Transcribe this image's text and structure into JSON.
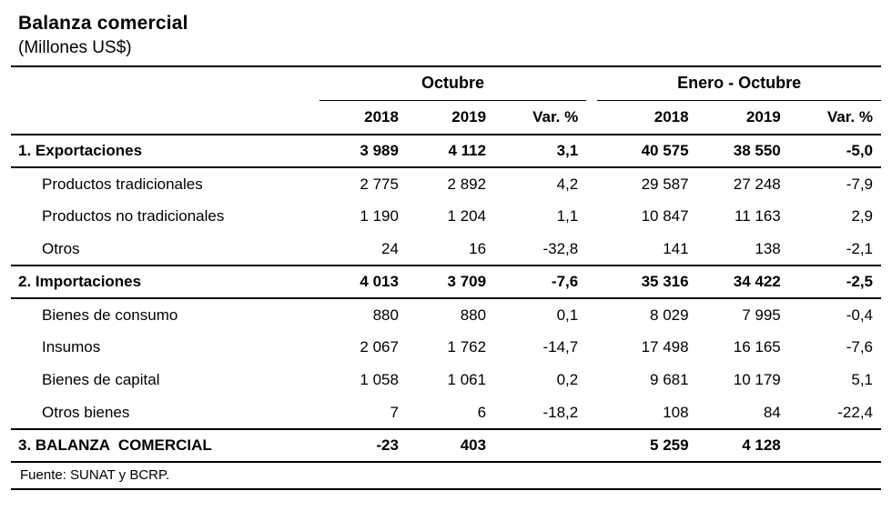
{
  "header": {
    "title": "Balanza comercial",
    "subtitle": "(Millones US$)"
  },
  "table": {
    "column_groups": [
      {
        "label": "Octubre"
      },
      {
        "label": "Enero - Octubre"
      }
    ],
    "column_headers": [
      "2018",
      "2019",
      "Var. %",
      "2018",
      "2019",
      "Var. %"
    ],
    "rows": [
      {
        "label": "1. Exportaciones",
        "values": [
          "3 989",
          "4 112",
          "3,1",
          "40 575",
          "38 550",
          "-5,0"
        ]
      },
      {
        "label": "Productos tradicionales",
        "values": [
          "2 775",
          "2 892",
          "4,2",
          "29 587",
          "27 248",
          "-7,9"
        ]
      },
      {
        "label": "Productos no tradicionales",
        "values": [
          "1 190",
          "1 204",
          "1,1",
          "10 847",
          "11 163",
          "2,9"
        ]
      },
      {
        "label": "Otros",
        "values": [
          "24",
          "16",
          "-32,8",
          "141",
          "138",
          "-2,1"
        ]
      },
      {
        "label": "2. Importaciones",
        "values": [
          "4 013",
          "3 709",
          "-7,6",
          "35 316",
          "34 422",
          "-2,5"
        ]
      },
      {
        "label": "Bienes de consumo",
        "values": [
          "880",
          "880",
          "0,1",
          "8 029",
          "7 995",
          "-0,4"
        ]
      },
      {
        "label": "Insumos",
        "values": [
          "2 067",
          "1 762",
          "-14,7",
          "17 498",
          "16 165",
          "-7,6"
        ]
      },
      {
        "label": "Bienes de capital",
        "values": [
          "1 058",
          "1 061",
          "0,2",
          "9 681",
          "10 179",
          "5,1"
        ]
      },
      {
        "label": "Otros bienes",
        "values": [
          "7",
          "6",
          "-18,2",
          "108",
          "84",
          "-22,4"
        ]
      },
      {
        "label": "3. BALANZA  COMERCIAL",
        "values": [
          "-23",
          "403",
          "",
          "5 259",
          "4 128",
          ""
        ]
      }
    ]
  },
  "footer": {
    "source": "Fuente: SUNAT y BCRP."
  }
}
